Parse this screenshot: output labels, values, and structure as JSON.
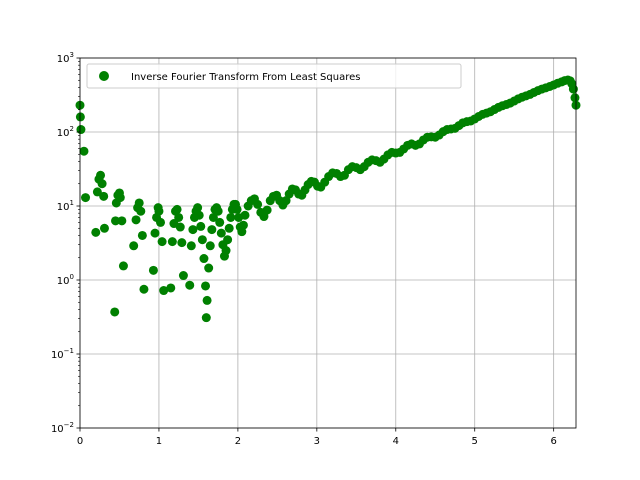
{
  "chart_data": {
    "type": "scatter",
    "title": "",
    "xlabel": "",
    "ylabel": "",
    "xlim": [
      0,
      6.283
    ],
    "ylim": [
      0.01,
      1000
    ],
    "yscale": "log",
    "grid": true,
    "legend_position": "upper-left",
    "marker": "circle",
    "colors": {
      "series": "#008000",
      "grid": "#b0b0b0",
      "axes": "#000000",
      "background": "#ffffff"
    },
    "x_ticks": [
      {
        "value": 0,
        "label": "0"
      },
      {
        "value": 1,
        "label": "1"
      },
      {
        "value": 2,
        "label": "2"
      },
      {
        "value": 3,
        "label": "3"
      },
      {
        "value": 4,
        "label": "4"
      },
      {
        "value": 5,
        "label": "5"
      },
      {
        "value": 6,
        "label": "6"
      }
    ],
    "y_ticks": [
      {
        "value": 0.01,
        "base": "10",
        "exp": "−2"
      },
      {
        "value": 0.1,
        "base": "10",
        "exp": "−1"
      },
      {
        "value": 1,
        "base": "10",
        "exp": "0"
      },
      {
        "value": 10,
        "base": "10",
        "exp": "1"
      },
      {
        "value": 100,
        "base": "10",
        "exp": "2"
      },
      {
        "value": 1000,
        "base": "10",
        "exp": "3"
      }
    ],
    "series": [
      {
        "name": "Inverse Fourier Transform From Least Squares",
        "points": [
          [
            0.0,
            230
          ],
          [
            0.005,
            160
          ],
          [
            0.012,
            108
          ],
          [
            0.05,
            55
          ],
          [
            0.07,
            13
          ],
          [
            0.2,
            4.4
          ],
          [
            0.22,
            15.5
          ],
          [
            0.24,
            23
          ],
          [
            0.26,
            26
          ],
          [
            0.28,
            20
          ],
          [
            0.3,
            13.5
          ],
          [
            0.31,
            5.0
          ],
          [
            0.44,
            0.37
          ],
          [
            0.45,
            6.3
          ],
          [
            0.46,
            11
          ],
          [
            0.48,
            14
          ],
          [
            0.5,
            15
          ],
          [
            0.51,
            13
          ],
          [
            0.53,
            6.3
          ],
          [
            0.55,
            1.55
          ],
          [
            0.68,
            2.9
          ],
          [
            0.71,
            6.5
          ],
          [
            0.73,
            9.5
          ],
          [
            0.75,
            11
          ],
          [
            0.77,
            8.5
          ],
          [
            0.79,
            4.0
          ],
          [
            0.81,
            0.75
          ],
          [
            0.93,
            1.35
          ],
          [
            0.95,
            4.3
          ],
          [
            0.97,
            7.0
          ],
          [
            0.99,
            9.5
          ],
          [
            1.0,
            8.5
          ],
          [
            1.02,
            6.0
          ],
          [
            1.04,
            3.3
          ],
          [
            1.06,
            0.72
          ],
          [
            1.15,
            0.78
          ],
          [
            1.17,
            3.3
          ],
          [
            1.19,
            5.8
          ],
          [
            1.21,
            8.5
          ],
          [
            1.23,
            9.0
          ],
          [
            1.25,
            7.0
          ],
          [
            1.27,
            5.2
          ],
          [
            1.29,
            3.2
          ],
          [
            1.31,
            1.15
          ],
          [
            1.39,
            0.85
          ],
          [
            1.41,
            2.9
          ],
          [
            1.43,
            4.8
          ],
          [
            1.45,
            7.0
          ],
          [
            1.47,
            8.5
          ],
          [
            1.49,
            9.5
          ],
          [
            1.51,
            7.5
          ],
          [
            1.53,
            5.3
          ],
          [
            1.55,
            3.5
          ],
          [
            1.57,
            1.95
          ],
          [
            1.59,
            0.83
          ],
          [
            1.6,
            0.31
          ],
          [
            1.61,
            0.53
          ],
          [
            1.63,
            1.45
          ],
          [
            1.65,
            2.9
          ],
          [
            1.67,
            4.8
          ],
          [
            1.69,
            7.0
          ],
          [
            1.71,
            9.0
          ],
          [
            1.73,
            9.5
          ],
          [
            1.75,
            8.5
          ],
          [
            1.77,
            6.0
          ],
          [
            1.79,
            4.3
          ],
          [
            1.81,
            3.0
          ],
          [
            1.83,
            2.1
          ],
          [
            1.85,
            2.5
          ],
          [
            1.87,
            3.5
          ],
          [
            1.89,
            5.0
          ],
          [
            1.91,
            7.0
          ],
          [
            1.93,
            9.0
          ],
          [
            1.95,
            10.5
          ],
          [
            1.97,
            10.5
          ],
          [
            1.99,
            9.0
          ],
          [
            2.01,
            7.0
          ],
          [
            2.03,
            5.2
          ],
          [
            2.05,
            4.5
          ],
          [
            2.07,
            5.5
          ],
          [
            2.09,
            7.5
          ],
          [
            2.13,
            10.0
          ],
          [
            2.17,
            11.8
          ],
          [
            2.21,
            12.5
          ],
          [
            2.25,
            10.5
          ],
          [
            2.29,
            8.2
          ],
          [
            2.33,
            7.2
          ],
          [
            2.37,
            8.8
          ],
          [
            2.41,
            11.8
          ],
          [
            2.45,
            13.5
          ],
          [
            2.49,
            14.0
          ],
          [
            2.53,
            11.8
          ],
          [
            2.57,
            10.3
          ],
          [
            2.61,
            11.8
          ],
          [
            2.65,
            14.5
          ],
          [
            2.69,
            17.0
          ],
          [
            2.73,
            16.5
          ],
          [
            2.77,
            14.5
          ],
          [
            2.81,
            14.0
          ],
          [
            2.85,
            16.5
          ],
          [
            2.89,
            19.5
          ],
          [
            2.93,
            21.5
          ],
          [
            2.97,
            21.0
          ],
          [
            3.01,
            18.5
          ],
          [
            3.05,
            18.0
          ],
          [
            3.1,
            21.0
          ],
          [
            3.15,
            25.0
          ],
          [
            3.2,
            28.0
          ],
          [
            3.25,
            27.5
          ],
          [
            3.3,
            25.0
          ],
          [
            3.35,
            26.0
          ],
          [
            3.4,
            31.0
          ],
          [
            3.45,
            34.0
          ],
          [
            3.5,
            33.0
          ],
          [
            3.55,
            31.0
          ],
          [
            3.6,
            34.0
          ],
          [
            3.65,
            39.0
          ],
          [
            3.7,
            42.0
          ],
          [
            3.75,
            41.0
          ],
          [
            3.8,
            39.0
          ],
          [
            3.85,
            43.0
          ],
          [
            3.9,
            49.0
          ],
          [
            3.95,
            53.0
          ],
          [
            4.0,
            52.0
          ],
          [
            4.05,
            53.0
          ],
          [
            4.1,
            59.0
          ],
          [
            4.15,
            66.0
          ],
          [
            4.2,
            69.0
          ],
          [
            4.25,
            66.0
          ],
          [
            4.3,
            69.0
          ],
          [
            4.35,
            78.0
          ],
          [
            4.4,
            85.0
          ],
          [
            4.45,
            86.0
          ],
          [
            4.5,
            85.0
          ],
          [
            4.55,
            91.0
          ],
          [
            4.6,
            101.0
          ],
          [
            4.65,
            108.0
          ],
          [
            4.7,
            110.0
          ],
          [
            4.75,
            112.0
          ],
          [
            4.8,
            122.0
          ],
          [
            4.85,
            133.0
          ],
          [
            4.9,
            138.0
          ],
          [
            4.95,
            141.0
          ],
          [
            5.0,
            150.0
          ],
          [
            5.05,
            162.0
          ],
          [
            5.1,
            173.0
          ],
          [
            5.15,
            180.0
          ],
          [
            5.2,
            188.0
          ],
          [
            5.25,
            201.0
          ],
          [
            5.3,
            215.0
          ],
          [
            5.35,
            226.0
          ],
          [
            5.4,
            235.0
          ],
          [
            5.45,
            246.0
          ],
          [
            5.5,
            262.0
          ],
          [
            5.55,
            280.0
          ],
          [
            5.6,
            295.0
          ],
          [
            5.65,
            308.0
          ],
          [
            5.7,
            322.0
          ],
          [
            5.75,
            342.0
          ],
          [
            5.8,
            362.0
          ],
          [
            5.85,
            380.0
          ],
          [
            5.9,
            395.0
          ],
          [
            5.95,
            412.0
          ],
          [
            6.0,
            432.0
          ],
          [
            6.05,
            455.0
          ],
          [
            6.1,
            475.0
          ],
          [
            6.14,
            495.0
          ],
          [
            6.18,
            505.0
          ],
          [
            6.21,
            490.0
          ],
          [
            6.23,
            450.0
          ],
          [
            6.25,
            380.0
          ],
          [
            6.27,
            290.0
          ],
          [
            6.283,
            230.0
          ]
        ]
      }
    ]
  }
}
